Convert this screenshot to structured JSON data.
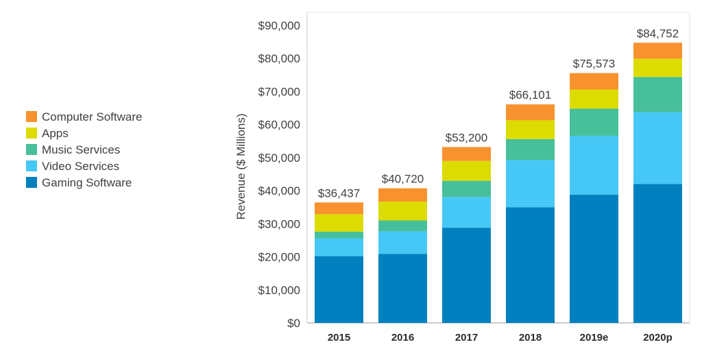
{
  "chart_data": {
    "type": "bar",
    "stacked": true,
    "title": "",
    "xlabel": "",
    "ylabel": "Revenue ($ Millions)",
    "ylim": [
      0,
      90000
    ],
    "y_ticks": [
      0,
      10000,
      20000,
      30000,
      40000,
      50000,
      60000,
      70000,
      80000,
      90000
    ],
    "y_tick_labels": [
      "$0",
      "$10,000",
      "$20,000",
      "$30,000",
      "$40,000",
      "$50,000",
      "$60,000",
      "$70,000",
      "$80,000",
      "$90,000"
    ],
    "categories": [
      "2015",
      "2016",
      "2017",
      "2018",
      "2019e",
      "2020p"
    ],
    "totals": [
      36437,
      40720,
      53200,
      66101,
      75573,
      84752
    ],
    "total_labels": [
      "$36,437",
      "$40,720",
      "$53,200",
      "$66,101",
      "$75,573",
      "$84,752"
    ],
    "series": [
      {
        "name": "Gaming Software",
        "color": "#0080BE",
        "values": [
          20200,
          20900,
          28800,
          35000,
          38800,
          42000
        ]
      },
      {
        "name": "Video Services",
        "color": "#45C8F5",
        "values": [
          5400,
          6800,
          9300,
          14300,
          17800,
          21800
        ]
      },
      {
        "name": "Music Services",
        "color": "#47BF9A",
        "values": [
          2000,
          3300,
          4900,
          6300,
          8200,
          10600
        ]
      },
      {
        "name": "Apps",
        "color": "#DCDC00",
        "values": [
          5300,
          5700,
          6000,
          5700,
          5800,
          5500
        ]
      },
      {
        "name": "Computer Software",
        "color": "#F7922F",
        "values": [
          3537,
          4020,
          4200,
          4801,
          4973,
          4852
        ]
      }
    ],
    "legend": {
      "position": "left",
      "order": [
        "Computer Software",
        "Apps",
        "Music Services",
        "Video Services",
        "Gaming Software"
      ]
    },
    "grid": false
  }
}
